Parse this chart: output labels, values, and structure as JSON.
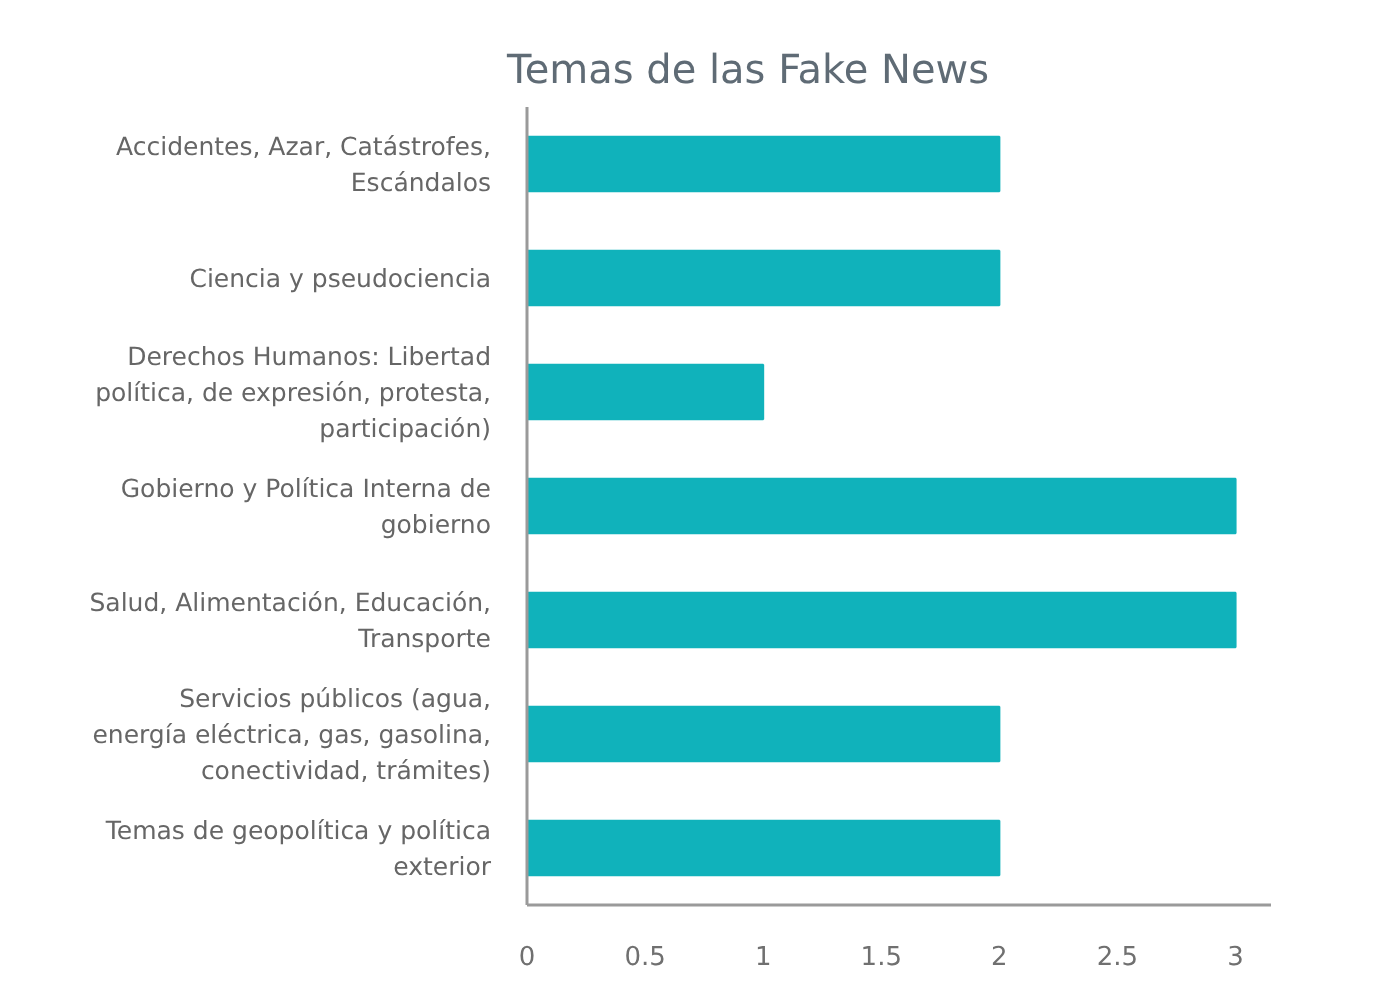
{
  "chart_data": {
    "type": "bar",
    "orientation": "horizontal",
    "title": "Temas de las Fake News",
    "categories": [
      "Accidentes, Azar, Catástrofes,\nEscándalos",
      "Ciencia y pseudociencia",
      "Derechos Humanos: Libertad\npolítica, de expresión, protesta,\nparticipación)",
      "Gobierno y Política Interna de\ngobierno",
      "Salud, Alimentación, Educación,\nTransporte",
      "Servicios públicos (agua,\nenergía eléctrica, gas, gasolina,\nconectividad, trámites)",
      "Temas de geopolítica y política\nexterior"
    ],
    "values": [
      2,
      2,
      1,
      3,
      3,
      2,
      2
    ],
    "color": "#10b2bb",
    "xlim": [
      0,
      3.15
    ],
    "xticks": [
      0,
      0.5,
      1,
      1.5,
      2,
      2.5,
      3
    ],
    "grid": false
  }
}
